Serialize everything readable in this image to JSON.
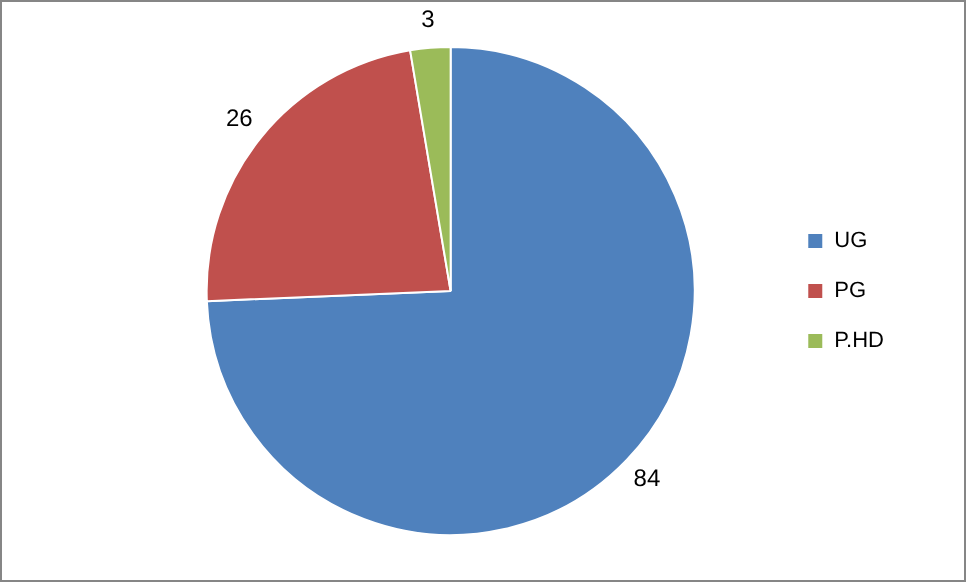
{
  "chart_data": {
    "type": "pie",
    "categories": [
      "UG",
      "PG",
      "P.HD"
    ],
    "values": [
      84,
      26,
      3
    ],
    "colors": [
      "#4f81bd",
      "#c0504d",
      "#9bbb59"
    ],
    "legend": "right",
    "data_labels": true
  }
}
